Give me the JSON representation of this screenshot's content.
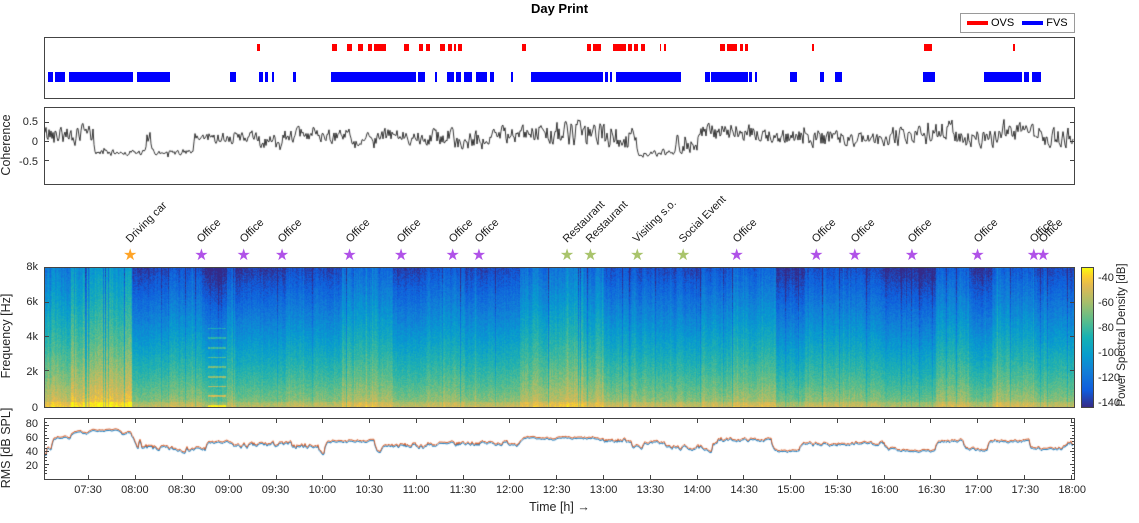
{
  "title": "Day Print",
  "legend": {
    "items": [
      {
        "label": "OVS",
        "color": "#ff0000"
      },
      {
        "label": "FVS",
        "color": "#0000ff"
      }
    ]
  },
  "time_axis": {
    "min": 7.03,
    "max": 18.03,
    "xlabel": "Time [h] →",
    "ticks": [
      {
        "t": 7.5,
        "label": "07:30"
      },
      {
        "t": 8.0,
        "label": "08:00"
      },
      {
        "t": 8.5,
        "label": "08:30"
      },
      {
        "t": 9.0,
        "label": "09:00"
      },
      {
        "t": 9.5,
        "label": "09:30"
      },
      {
        "t": 10.0,
        "label": "10:00"
      },
      {
        "t": 10.5,
        "label": "10:30"
      },
      {
        "t": 11.0,
        "label": "11:00"
      },
      {
        "t": 11.5,
        "label": "11:30"
      },
      {
        "t": 12.0,
        "label": "12:00"
      },
      {
        "t": 12.5,
        "label": "12:30"
      },
      {
        "t": 13.0,
        "label": "13:00"
      },
      {
        "t": 13.5,
        "label": "13:30"
      },
      {
        "t": 14.0,
        "label": "14:00"
      },
      {
        "t": 14.5,
        "label": "14:30"
      },
      {
        "t": 15.0,
        "label": "15:00"
      },
      {
        "t": 15.5,
        "label": "15:30"
      },
      {
        "t": 16.0,
        "label": "16:00"
      },
      {
        "t": 16.5,
        "label": "16:30"
      },
      {
        "t": 17.0,
        "label": "17:00"
      },
      {
        "t": 17.5,
        "label": "17:30"
      },
      {
        "t": 18.0,
        "label": "18:00"
      }
    ]
  },
  "annotations": [
    {
      "t": 7.95,
      "label": "Driving car",
      "color": "#ffa427"
    },
    {
      "t": 8.71,
      "label": "Office",
      "color": "#b052e8"
    },
    {
      "t": 9.16,
      "label": "Office",
      "color": "#b052e8"
    },
    {
      "t": 9.57,
      "label": "Office",
      "color": "#b052e8"
    },
    {
      "t": 10.29,
      "label": "Office",
      "color": "#b052e8"
    },
    {
      "t": 10.84,
      "label": "Office",
      "color": "#b052e8"
    },
    {
      "t": 11.39,
      "label": "Office",
      "color": "#b052e8"
    },
    {
      "t": 11.67,
      "label": "Office",
      "color": "#b052e8"
    },
    {
      "t": 12.61,
      "label": "Restaurant",
      "color": "#a9c46c"
    },
    {
      "t": 12.86,
      "label": "Restaurant",
      "color": "#a9c46c"
    },
    {
      "t": 13.36,
      "label": "Visiting s.o.",
      "color": "#a9c46c"
    },
    {
      "t": 13.85,
      "label": "Social Event",
      "color": "#a9c46c"
    },
    {
      "t": 14.42,
      "label": "Office",
      "color": "#b052e8"
    },
    {
      "t": 15.27,
      "label": "Office",
      "color": "#b052e8"
    },
    {
      "t": 15.68,
      "label": "Office",
      "color": "#b052e8"
    },
    {
      "t": 16.29,
      "label": "Office",
      "color": "#b052e8"
    },
    {
      "t": 16.99,
      "label": "Office",
      "color": "#b052e8"
    },
    {
      "t": 17.59,
      "label": "Office",
      "color": "#b052e8"
    },
    {
      "t": 17.69,
      "label": "Office",
      "color": "#b052e8"
    }
  ],
  "chart_data": [
    {
      "type": "event-raster",
      "name": "voice-activity",
      "series": [
        {
          "name": "OVS",
          "color": "#ff0000",
          "segments": [
            [
              9.3,
              9.33
            ],
            [
              10.1,
              10.15
            ],
            [
              10.26,
              10.31
            ],
            [
              10.38,
              10.43
            ],
            [
              10.48,
              10.53
            ],
            [
              10.55,
              10.68
            ],
            [
              10.87,
              10.92
            ],
            [
              11.03,
              11.07
            ],
            [
              11.1,
              11.15
            ],
            [
              11.25,
              11.31
            ],
            [
              11.34,
              11.38
            ],
            [
              11.4,
              11.42
            ],
            [
              11.44,
              11.49
            ],
            [
              12.13,
              12.17
            ],
            [
              12.82,
              12.87
            ],
            [
              12.89,
              12.97
            ],
            [
              13.1,
              13.14
            ],
            [
              13.15,
              13.24
            ],
            [
              13.26,
              13.31
            ],
            [
              13.33,
              13.37
            ],
            [
              13.4,
              13.44
            ],
            [
              13.6,
              13.62
            ],
            [
              13.65,
              13.67
            ],
            [
              14.25,
              14.3
            ],
            [
              14.32,
              14.43
            ],
            [
              14.46,
              14.49
            ],
            [
              14.51,
              14.54
            ],
            [
              15.23,
              15.25
            ],
            [
              16.43,
              16.51
            ],
            [
              17.38,
              17.4
            ]
          ]
        },
        {
          "name": "FVS",
          "color": "#0000ff",
          "segments": [
            [
              7.06,
              7.12
            ],
            [
              7.14,
              7.24
            ],
            [
              7.29,
              7.97
            ],
            [
              8.01,
              8.37
            ],
            [
              9.01,
              9.07
            ],
            [
              9.32,
              9.36
            ],
            [
              9.38,
              9.41
            ],
            [
              9.46,
              9.48
            ],
            [
              9.68,
              9.71
            ],
            [
              10.09,
              11.0
            ],
            [
              11.02,
              11.09
            ],
            [
              11.2,
              11.22
            ],
            [
              11.33,
              11.4
            ],
            [
              11.42,
              11.48
            ],
            [
              11.51,
              11.59
            ],
            [
              11.64,
              11.75
            ],
            [
              11.79,
              11.83
            ],
            [
              12.01,
              12.03
            ],
            [
              12.22,
              13.0
            ],
            [
              13.02,
              13.05
            ],
            [
              13.07,
              13.09
            ],
            [
              13.13,
              13.83
            ],
            [
              14.09,
              14.14
            ],
            [
              14.15,
              14.54
            ],
            [
              14.56,
              14.59
            ],
            [
              14.62,
              14.64
            ],
            [
              14.99,
              15.07
            ],
            [
              15.31,
              15.36
            ],
            [
              15.48,
              15.55
            ],
            [
              16.42,
              16.54
            ],
            [
              17.07,
              17.17
            ],
            [
              17.18,
              17.47
            ],
            [
              17.5,
              17.55
            ],
            [
              17.58,
              17.68
            ]
          ]
        }
      ]
    },
    {
      "type": "line",
      "name": "coherence",
      "ylabel": "Coherence",
      "color": "#000000",
      "ylim": [
        -1.075,
        0.875
      ],
      "yticks": [
        {
          "v": 0.5,
          "label": "0.5"
        },
        {
          "v": 0,
          "label": "0"
        },
        {
          "v": -0.5,
          "label": "-0.5"
        }
      ],
      "segments_t0_t1_mean_amp": [
        [
          7.03,
          7.55,
          0.2,
          0.35
        ],
        [
          7.55,
          8.1,
          -0.27,
          0.1
        ],
        [
          8.1,
          8.17,
          0.05,
          0.4
        ],
        [
          8.17,
          8.62,
          -0.27,
          0.1
        ],
        [
          8.62,
          9.3,
          0.12,
          0.22
        ],
        [
          9.3,
          9.55,
          0.0,
          0.3
        ],
        [
          9.55,
          10.3,
          0.18,
          0.25
        ],
        [
          10.3,
          10.55,
          0.05,
          0.3
        ],
        [
          10.55,
          11.4,
          0.15,
          0.28
        ],
        [
          11.4,
          11.75,
          0.05,
          0.35
        ],
        [
          11.75,
          12.3,
          0.2,
          0.3
        ],
        [
          12.3,
          12.6,
          0.25,
          0.4
        ],
        [
          12.6,
          13.1,
          0.2,
          0.45
        ],
        [
          13.1,
          13.35,
          0.1,
          0.4
        ],
        [
          13.35,
          13.75,
          -0.3,
          0.12
        ],
        [
          13.75,
          14.0,
          0.0,
          0.35
        ],
        [
          14.0,
          14.6,
          0.25,
          0.3
        ],
        [
          14.6,
          15.1,
          0.15,
          0.25
        ],
        [
          15.1,
          15.7,
          0.1,
          0.3
        ],
        [
          15.7,
          16.1,
          0.05,
          0.25
        ],
        [
          16.1,
          16.45,
          0.15,
          0.35
        ],
        [
          16.45,
          16.75,
          0.3,
          0.4
        ],
        [
          16.75,
          17.2,
          0.1,
          0.3
        ],
        [
          17.2,
          17.6,
          0.25,
          0.3
        ],
        [
          17.6,
          18.03,
          0.15,
          0.35
        ]
      ]
    },
    {
      "type": "heatmap",
      "name": "spectrogram",
      "ylabel": "Frequency [Hz]",
      "ylim": [
        0,
        8000
      ],
      "yticks": [
        {
          "v": 8000,
          "label": "8k"
        },
        {
          "v": 6000,
          "label": "6k"
        },
        {
          "v": 4000,
          "label": "4k"
        },
        {
          "v": 2000,
          "label": "2k"
        },
        {
          "v": 0,
          "label": "0"
        }
      ],
      "colorbar": {
        "label": "Power Spectral Density [dB]",
        "lim_top": -31,
        "lim_bottom": -144,
        "ticks": [
          {
            "v": -40,
            "label": "-40"
          },
          {
            "v": -60,
            "label": "-60"
          },
          {
            "v": -80,
            "label": "-80"
          },
          {
            "v": -100,
            "label": "-100"
          },
          {
            "v": -120,
            "label": "-120"
          },
          {
            "v": -140,
            "label": "-140"
          }
        ]
      },
      "loudness_segments_t0_t1_level": [
        [
          7.03,
          7.3,
          0.75
        ],
        [
          7.3,
          7.95,
          0.92
        ],
        [
          7.95,
          8.2,
          0.35
        ],
        [
          8.2,
          8.7,
          0.45
        ],
        [
          8.7,
          8.97,
          0.3
        ],
        [
          8.97,
          9.06,
          0.55
        ],
        [
          9.06,
          9.6,
          0.35
        ],
        [
          9.6,
          10.0,
          0.45
        ],
        [
          10.0,
          10.2,
          0.4
        ],
        [
          10.2,
          10.75,
          0.6
        ],
        [
          10.75,
          11.1,
          0.4
        ],
        [
          11.1,
          11.5,
          0.5
        ],
        [
          11.5,
          12.1,
          0.45
        ],
        [
          12.1,
          13.0,
          0.65
        ],
        [
          13.0,
          13.45,
          0.5
        ],
        [
          13.45,
          14.05,
          0.45
        ],
        [
          14.05,
          14.35,
          0.5
        ],
        [
          14.35,
          14.85,
          0.55
        ],
        [
          14.85,
          15.15,
          0.3
        ],
        [
          15.15,
          16.0,
          0.45
        ],
        [
          16.0,
          16.55,
          0.3
        ],
        [
          16.55,
          16.9,
          0.55
        ],
        [
          16.9,
          17.15,
          0.35
        ],
        [
          17.15,
          17.6,
          0.55
        ],
        [
          17.6,
          18.03,
          0.4
        ]
      ],
      "harmonic_lines_window": [
        8.77,
        8.96
      ]
    },
    {
      "type": "line",
      "name": "rms",
      "ylabel": "RMS [dB SPL]",
      "ylim": [
        0,
        90
      ],
      "yticks": [
        {
          "v": 80,
          "label": "80"
        },
        {
          "v": 60,
          "label": "60"
        },
        {
          "v": 40,
          "label": "40"
        },
        {
          "v": 20,
          "label": "20"
        }
      ],
      "series": [
        {
          "name": "left",
          "color": "#0072bd",
          "offset": -1.0
        },
        {
          "name": "right",
          "color": "#d95319",
          "offset": 1.0
        }
      ],
      "level_segments_t0_t1_level_amp": [
        [
          7.03,
          7.1,
          45,
          12
        ],
        [
          7.1,
          7.3,
          63,
          4
        ],
        [
          7.3,
          7.5,
          70,
          3
        ],
        [
          7.5,
          7.8,
          73,
          2
        ],
        [
          7.8,
          7.95,
          68,
          5
        ],
        [
          7.95,
          8.05,
          55,
          12
        ],
        [
          8.05,
          8.3,
          46,
          8
        ],
        [
          8.3,
          8.75,
          45,
          7
        ],
        [
          8.75,
          9.0,
          55,
          4
        ],
        [
          9.0,
          9.3,
          50,
          7
        ],
        [
          9.3,
          9.65,
          52,
          7
        ],
        [
          9.65,
          9.95,
          50,
          7
        ],
        [
          9.95,
          10.02,
          38,
          4
        ],
        [
          10.02,
          10.55,
          57,
          3
        ],
        [
          10.55,
          10.62,
          40,
          5
        ],
        [
          10.62,
          11.1,
          50,
          7
        ],
        [
          11.1,
          11.45,
          52,
          7
        ],
        [
          11.45,
          12.1,
          54,
          6
        ],
        [
          12.1,
          12.95,
          61,
          3
        ],
        [
          12.95,
          13.3,
          58,
          6
        ],
        [
          13.3,
          13.42,
          48,
          6
        ],
        [
          13.42,
          13.65,
          55,
          4
        ],
        [
          13.65,
          14.05,
          47,
          6
        ],
        [
          14.05,
          14.15,
          42,
          4
        ],
        [
          14.15,
          14.3,
          58,
          8
        ],
        [
          14.3,
          14.8,
          59,
          4
        ],
        [
          14.8,
          15.1,
          43,
          3
        ],
        [
          15.1,
          15.6,
          52,
          5
        ],
        [
          15.6,
          16.0,
          54,
          5
        ],
        [
          16.0,
          16.12,
          45,
          4
        ],
        [
          16.12,
          16.55,
          42,
          3
        ],
        [
          16.55,
          16.85,
          58,
          5
        ],
        [
          16.85,
          17.1,
          44,
          4
        ],
        [
          17.1,
          17.55,
          57,
          4
        ],
        [
          17.55,
          17.9,
          45,
          4
        ],
        [
          17.9,
          18.03,
          52,
          8
        ]
      ]
    }
  ]
}
